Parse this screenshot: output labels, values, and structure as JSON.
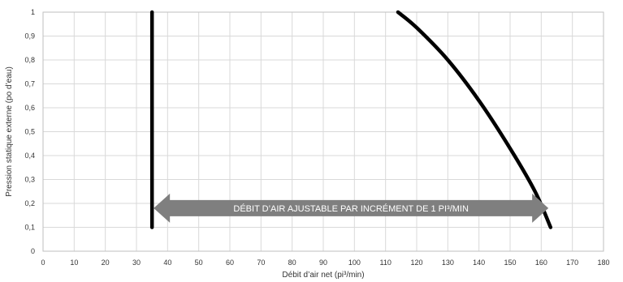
{
  "chart_data": {
    "type": "line",
    "xlabel": "Débit d’air net (pi³/min)",
    "ylabel": "Pression statique externe (po d’eau)",
    "xlim": [
      0,
      180
    ],
    "ylim": [
      0,
      1
    ],
    "x_ticks": [
      "0",
      "10",
      "20",
      "30",
      "40",
      "50",
      "60",
      "70",
      "80",
      "90",
      "100",
      "110",
      "120",
      "130",
      "140",
      "150",
      "160",
      "170",
      "180"
    ],
    "y_ticks": [
      "0",
      "0,1",
      "0,2",
      "0,3",
      "0,4",
      "0,5",
      "0,6",
      "0,7",
      "0,8",
      "0,9",
      "1"
    ],
    "grid": true,
    "series": [
      {
        "points": [
          [
            35,
            0.1
          ],
          [
            35,
            1.0
          ]
        ],
        "color": "#000000"
      },
      {
        "points": [
          [
            114,
            1.0
          ],
          [
            120,
            0.935
          ],
          [
            130,
            0.8
          ],
          [
            140,
            0.63
          ],
          [
            150,
            0.43
          ],
          [
            158,
            0.25
          ],
          [
            163,
            0.1
          ]
        ],
        "color": "#000000"
      }
    ],
    "annotation": {
      "text": "DÉBIT D’AIR AJUSTABLE PAR INCRÉMENT DE 1 PI³/MIN",
      "x_range": [
        35,
        161
      ],
      "y": 0.18,
      "color": "#7f7f7f"
    }
  }
}
